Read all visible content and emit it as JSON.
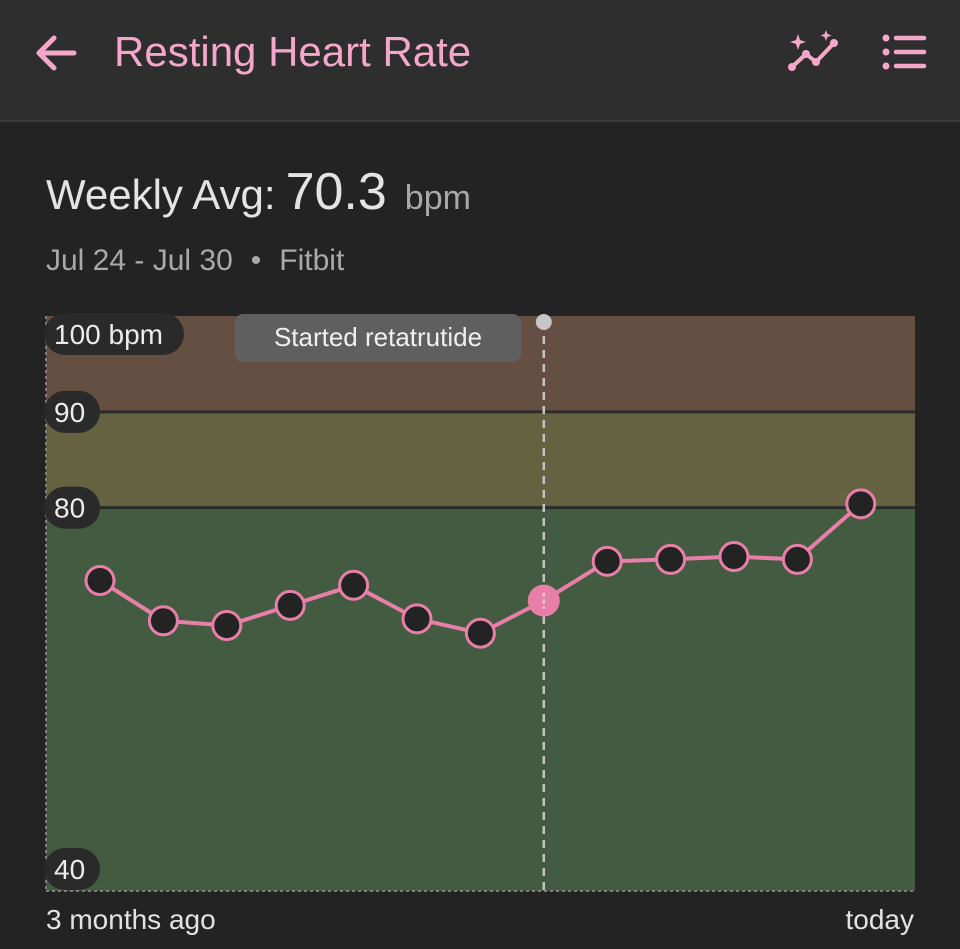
{
  "appbar": {
    "title": "Resting Heart Rate",
    "back_icon": "arrow-back-icon",
    "insights_icon": "sparkle-trend-icon",
    "list_icon": "list-icon",
    "accent": "#f4a7c9"
  },
  "summary": {
    "label": "Weekly Avg:",
    "value": "70.3",
    "unit": "bpm",
    "date_range": "Jul 24 - Jul 30",
    "separator": "•",
    "source": "Fitbit"
  },
  "chart_data": {
    "type": "line",
    "y_range": [
      40,
      100
    ],
    "y_ticks": [
      {
        "value": 100,
        "label": "100 bpm"
      },
      {
        "value": 90,
        "label": "90"
      },
      {
        "value": 80,
        "label": "80"
      },
      {
        "value": 40,
        "label": "40"
      }
    ],
    "zones": [
      {
        "from": 90,
        "to": 100,
        "color": "#654f42"
      },
      {
        "from": 80,
        "to": 90,
        "color": "#646240"
      },
      {
        "from": 40,
        "to": 80,
        "color": "#425b41"
      }
    ],
    "x_labels": {
      "start": "3 months ago",
      "end": "today"
    },
    "series": [
      {
        "values": [
          72.4,
          68.2,
          67.7,
          69.8,
          71.9,
          68.4,
          66.9,
          70.3,
          74.4,
          74.6,
          74.9,
          74.6,
          80.4
        ],
        "highlight_index": 7,
        "color": "#e87fa9"
      }
    ],
    "annotation": {
      "label": "Started retatrutide",
      "index": 7
    },
    "grid": "zone boundaries only",
    "legend": "none"
  }
}
